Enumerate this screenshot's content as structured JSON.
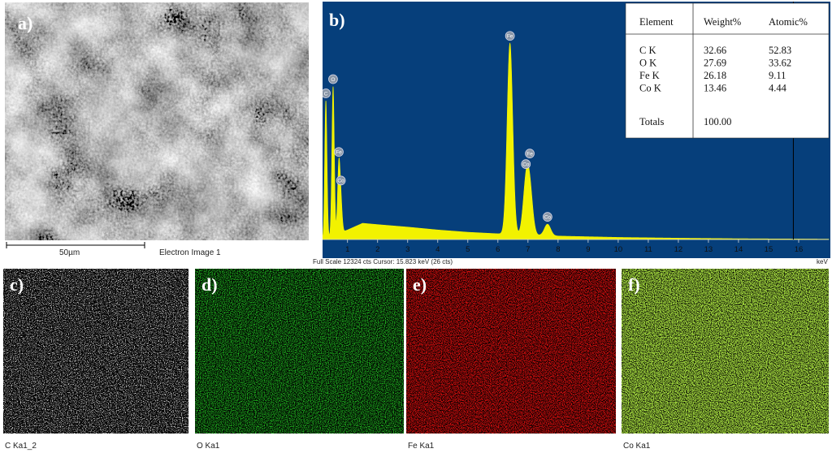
{
  "sem": {
    "label": "a)",
    "scale_bar": "50µm",
    "caption": "Electron Image 1"
  },
  "spectrum": {
    "label": "b)",
    "xlim": [
      0.17,
      17
    ],
    "ylim": [
      0,
      12324
    ],
    "xticks": [
      1,
      2,
      3,
      4,
      5,
      6,
      7,
      8,
      9,
      10,
      11,
      12,
      13,
      14,
      15,
      16
    ],
    "x_unit": "keV",
    "footer": "Full Scale 12324 cts  Cursor: 15.823 keV (26 cts)",
    "cursor": 15.823,
    "color": "#f2f200",
    "peaks": [
      {
        "label": "C",
        "energy": 0.28,
        "counts": 7200
      },
      {
        "label": "O",
        "energy": 0.52,
        "counts": 7800
      },
      {
        "label": "Co",
        "energy": 0.78,
        "counts": 1500
      },
      {
        "label": "Fe",
        "energy": 0.71,
        "counts": 3500
      },
      {
        "label": "Fe",
        "energy": 6.4,
        "counts": 10000
      },
      {
        "label": "Co",
        "energy": 6.93,
        "counts": 2400
      },
      {
        "label": "Fe",
        "energy": 7.06,
        "counts": 2200
      },
      {
        "label": "Co",
        "energy": 7.65,
        "counts": 600
      }
    ],
    "background": {
      "energy": [
        0.17,
        1,
        1.5,
        2,
        3,
        4,
        5,
        6,
        8,
        10,
        12,
        14,
        16,
        17
      ],
      "counts": [
        0,
        500,
        850,
        780,
        650,
        500,
        380,
        300,
        180,
        110,
        70,
        40,
        25,
        20
      ]
    },
    "table": {
      "header": [
        "Element",
        "Weight%",
        "Atomic%"
      ],
      "rows": [
        [
          "C K",
          32.66,
          52.83
        ],
        [
          "O K",
          27.69,
          33.62
        ],
        [
          "Fe K",
          26.18,
          9.11
        ],
        [
          "Co K",
          13.46,
          4.44
        ]
      ],
      "totals": [
        "Totals",
        "100.00"
      ]
    }
  },
  "maps": [
    {
      "label": "c)",
      "caption": "C Ka1_2",
      "color": "#e8e8e8"
    },
    {
      "label": "d)",
      "caption": "O Ka1",
      "color": "#22c022"
    },
    {
      "label": "e)",
      "caption": "Fe Ka1",
      "color": "#e01010"
    },
    {
      "label": "f)",
      "caption": "Co Ka1",
      "color": "#a8e040"
    }
  ]
}
